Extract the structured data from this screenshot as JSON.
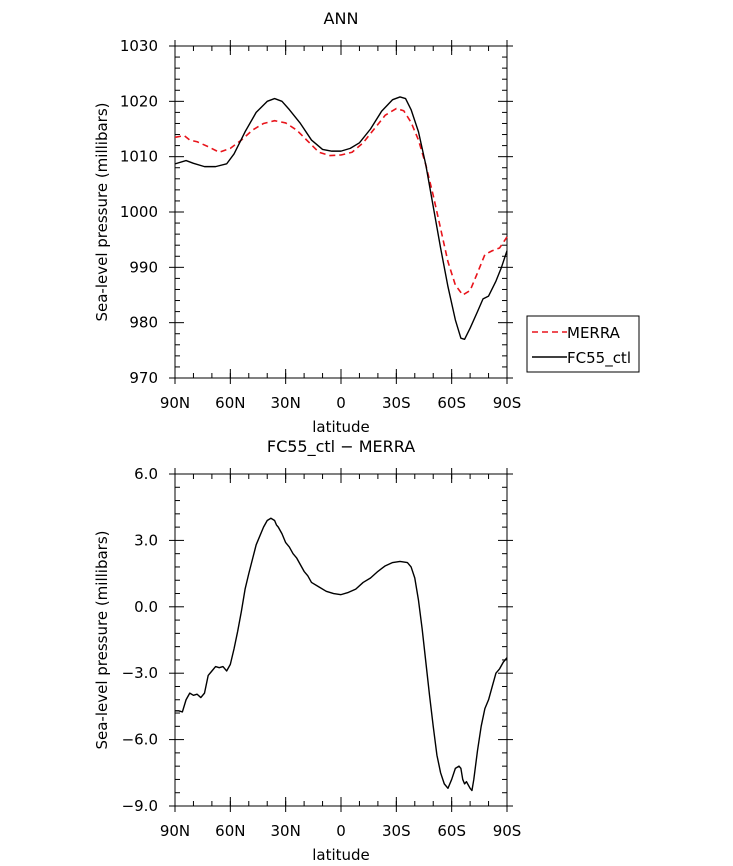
{
  "chart_data": [
    {
      "type": "line",
      "title": "ANN",
      "xlabel": "latitude",
      "ylabel": "Sea-level pressure (millibars)",
      "xlim": [
        90,
        -90
      ],
      "ylim": [
        970,
        1030
      ],
      "x_ticks": [
        {
          "value": 90,
          "label": "90N"
        },
        {
          "value": 60,
          "label": "60N"
        },
        {
          "value": 30,
          "label": "30N"
        },
        {
          "value": 0,
          "label": "0"
        },
        {
          "value": -30,
          "label": "30S"
        },
        {
          "value": -60,
          "label": "60S"
        },
        {
          "value": -90,
          "label": "90S"
        }
      ],
      "y_ticks": [
        970,
        980,
        990,
        1000,
        1010,
        1020,
        1030
      ],
      "y_tick_labels": [
        "970",
        "980",
        "990",
        "1000",
        "1010",
        "1020",
        "1030"
      ],
      "grid": false,
      "legend_position": "outside-right",
      "series": [
        {
          "name": "MERRA",
          "color": "#e8141b",
          "dash": "dashed",
          "points": [
            [
              90,
              1013.5
            ],
            [
              85,
              1013.8
            ],
            [
              82,
              1013.0
            ],
            [
              78,
              1012.7
            ],
            [
              72,
              1011.8
            ],
            [
              66,
              1010.8
            ],
            [
              60,
              1011.5
            ],
            [
              54,
              1013.0
            ],
            [
              48,
              1014.8
            ],
            [
              42,
              1016.0
            ],
            [
              36,
              1016.5
            ],
            [
              30,
              1016.1
            ],
            [
              24,
              1014.8
            ],
            [
              18,
              1012.8
            ],
            [
              12,
              1010.8
            ],
            [
              6,
              1010.2
            ],
            [
              0,
              1010.3
            ],
            [
              -6,
              1010.8
            ],
            [
              -12,
              1012.5
            ],
            [
              -18,
              1015.0
            ],
            [
              -24,
              1017.5
            ],
            [
              -30,
              1018.7
            ],
            [
              -34,
              1018.3
            ],
            [
              -38,
              1016.2
            ],
            [
              -42,
              1013.0
            ],
            [
              -46,
              1008.5
            ],
            [
              -50,
              1003.0
            ],
            [
              -54,
              997.0
            ],
            [
              -58,
              991.0
            ],
            [
              -62,
              986.8
            ],
            [
              -66,
              985.0
            ],
            [
              -70,
              985.8
            ],
            [
              -74,
              989.0
            ],
            [
              -78,
              992.3
            ],
            [
              -82,
              993.0
            ],
            [
              -86,
              993.5
            ],
            [
              -90,
              995.5
            ]
          ]
        },
        {
          "name": "FC55_ctl",
          "color": "#000000",
          "dash": "solid",
          "points": [
            [
              90,
              1008.7
            ],
            [
              84,
              1009.3
            ],
            [
              80,
              1008.8
            ],
            [
              74,
              1008.2
            ],
            [
              68,
              1008.2
            ],
            [
              62,
              1008.7
            ],
            [
              58,
              1010.5
            ],
            [
              52,
              1014.5
            ],
            [
              46,
              1018.0
            ],
            [
              40,
              1020.0
            ],
            [
              36,
              1020.5
            ],
            [
              32,
              1020.0
            ],
            [
              28,
              1018.5
            ],
            [
              22,
              1016.0
            ],
            [
              16,
              1013.0
            ],
            [
              10,
              1011.3
            ],
            [
              5,
              1011.0
            ],
            [
              0,
              1011.0
            ],
            [
              -5,
              1011.5
            ],
            [
              -10,
              1012.5
            ],
            [
              -16,
              1015.0
            ],
            [
              -22,
              1018.2
            ],
            [
              -28,
              1020.3
            ],
            [
              -32,
              1020.8
            ],
            [
              -35,
              1020.5
            ],
            [
              -38,
              1018.5
            ],
            [
              -42,
              1014.5
            ],
            [
              -46,
              1008.5
            ],
            [
              -50,
              1001.0
            ],
            [
              -54,
              993.5
            ],
            [
              -58,
              986.5
            ],
            [
              -62,
              980.5
            ],
            [
              -65,
              977.2
            ],
            [
              -67,
              977.0
            ],
            [
              -70,
              979.0
            ],
            [
              -74,
              982.0
            ],
            [
              -77,
              984.3
            ],
            [
              -80,
              984.8
            ],
            [
              -84,
              987.5
            ],
            [
              -87,
              990.0
            ],
            [
              -90,
              993.0
            ]
          ]
        }
      ]
    },
    {
      "type": "line",
      "title": "FC55_ctl − MERRA",
      "xlabel": "latitude",
      "ylabel": "Sea-level pressure (millibars)",
      "xlim": [
        90,
        -90
      ],
      "ylim": [
        -9,
        6
      ],
      "x_ticks": [
        {
          "value": 90,
          "label": "90N"
        },
        {
          "value": 60,
          "label": "60N"
        },
        {
          "value": 30,
          "label": "30N"
        },
        {
          "value": 0,
          "label": "0"
        },
        {
          "value": -30,
          "label": "30S"
        },
        {
          "value": -60,
          "label": "60S"
        },
        {
          "value": -90,
          "label": "90S"
        }
      ],
      "y_ticks": [
        -9,
        -6,
        -3,
        0,
        3,
        6
      ],
      "y_tick_labels": [
        "−9.0",
        "−6.0",
        "−3.0",
        "0.0",
        "3.0",
        "6.0"
      ],
      "grid": false,
      "series": [
        {
          "color": "#000000",
          "dash": "solid",
          "points": [
            [
              90,
              -4.7
            ],
            [
              88,
              -4.7
            ],
            [
              86,
              -4.75
            ],
            [
              84,
              -4.2
            ],
            [
              82,
              -3.9
            ],
            [
              80,
              -4.0
            ],
            [
              78,
              -3.95
            ],
            [
              76,
              -4.1
            ],
            [
              74,
              -3.9
            ],
            [
              72,
              -3.1
            ],
            [
              70,
              -2.9
            ],
            [
              68,
              -2.7
            ],
            [
              66,
              -2.75
            ],
            [
              64,
              -2.7
            ],
            [
              62,
              -2.9
            ],
            [
              60,
              -2.6
            ],
            [
              58,
              -1.9
            ],
            [
              56,
              -1.1
            ],
            [
              54,
              -0.2
            ],
            [
              52,
              0.8
            ],
            [
              50,
              1.5
            ],
            [
              46,
              2.8
            ],
            [
              42,
              3.6
            ],
            [
              40,
              3.9
            ],
            [
              38,
              4.0
            ],
            [
              36,
              3.9
            ],
            [
              35,
              3.7
            ],
            [
              34,
              3.6
            ],
            [
              32,
              3.3
            ],
            [
              30,
              2.9
            ],
            [
              28,
              2.7
            ],
            [
              26,
              2.4
            ],
            [
              24,
              2.2
            ],
            [
              22,
              1.9
            ],
            [
              20,
              1.6
            ],
            [
              18,
              1.4
            ],
            [
              16,
              1.1
            ],
            [
              12,
              0.9
            ],
            [
              8,
              0.7
            ],
            [
              4,
              0.6
            ],
            [
              0,
              0.55
            ],
            [
              -4,
              0.65
            ],
            [
              -8,
              0.8
            ],
            [
              -12,
              1.1
            ],
            [
              -16,
              1.3
            ],
            [
              -20,
              1.6
            ],
            [
              -24,
              1.85
            ],
            [
              -28,
              2.0
            ],
            [
              -32,
              2.05
            ],
            [
              -36,
              2.0
            ],
            [
              -38,
              1.8
            ],
            [
              -40,
              1.3
            ],
            [
              -42,
              0.3
            ],
            [
              -44,
              -1.0
            ],
            [
              -46,
              -2.5
            ],
            [
              -48,
              -4.0
            ],
            [
              -50,
              -5.4
            ],
            [
              -52,
              -6.7
            ],
            [
              -54,
              -7.5
            ],
            [
              -56,
              -8.0
            ],
            [
              -58,
              -8.2
            ],
            [
              -60,
              -7.8
            ],
            [
              -62,
              -7.3
            ],
            [
              -64,
              -7.2
            ],
            [
              -65,
              -7.3
            ],
            [
              -66,
              -7.8
            ],
            [
              -67,
              -8.0
            ],
            [
              -68,
              -7.9
            ],
            [
              -70,
              -8.2
            ],
            [
              -71,
              -8.3
            ],
            [
              -72,
              -7.8
            ],
            [
              -74,
              -6.5
            ],
            [
              -76,
              -5.4
            ],
            [
              -78,
              -4.6
            ],
            [
              -80,
              -4.2
            ],
            [
              -82,
              -3.6
            ],
            [
              -84,
              -3.0
            ],
            [
              -86,
              -2.8
            ],
            [
              -88,
              -2.5
            ],
            [
              -90,
              -2.3
            ]
          ]
        }
      ]
    }
  ]
}
